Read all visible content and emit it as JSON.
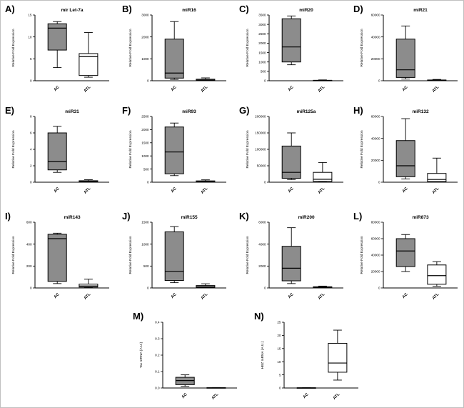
{
  "colors": {
    "ac_fill": "#8c8c8c",
    "atl_fill": "#ffffff",
    "stroke": "#000000",
    "background": "#ffffff"
  },
  "groups": [
    "AC",
    "ATL"
  ],
  "chart_data": [
    {
      "panel": "A)",
      "type": "box",
      "title": "mir Let-7a",
      "ylabel": "Relative Fold Expression",
      "ylim": [
        0,
        15
      ],
      "yticks": [
        0,
        5,
        10,
        15
      ],
      "ytick_labels": [
        "0",
        "5",
        "10",
        "15"
      ],
      "row": 1,
      "col": 1,
      "boxes": [
        {
          "group": "AC",
          "fill": "gray",
          "whisker_low": 3,
          "q1": 7,
          "median": 12,
          "q3": 13,
          "whisker_high": 13.5
        },
        {
          "group": "ATL",
          "fill": "white",
          "whisker_low": 0.8,
          "q1": 1.2,
          "median": 5.5,
          "q3": 6.2,
          "whisker_high": 11
        }
      ]
    },
    {
      "panel": "B)",
      "type": "box",
      "title": "miR16",
      "ylabel": "Relative Fold Expression",
      "ylim": [
        0,
        3000
      ],
      "yticks": [
        0,
        1000,
        2000,
        3000
      ],
      "ytick_labels": [
        "0",
        "1000",
        "2000",
        "3000"
      ],
      "row": 1,
      "col": 2,
      "boxes": [
        {
          "group": "AC",
          "fill": "gray",
          "whisker_low": 60,
          "q1": 120,
          "median": 350,
          "q3": 1900,
          "whisker_high": 2700
        },
        {
          "group": "ATL",
          "fill": "white",
          "whisker_low": 5,
          "q1": 15,
          "median": 35,
          "q3": 70,
          "whisker_high": 130
        }
      ]
    },
    {
      "panel": "C)",
      "type": "box",
      "title": "miR20",
      "ylabel": "Relative Fold Expression",
      "ylim": [
        0,
        3500
      ],
      "yticks": [
        0,
        500,
        1000,
        1500,
        2000,
        2500,
        3000,
        3500
      ],
      "ytick_labels": [
        "0",
        "500",
        "1000",
        "1500",
        "2000",
        "2500",
        "3000",
        "3500"
      ],
      "row": 1,
      "col": 3,
      "boxes": [
        {
          "group": "AC",
          "fill": "gray",
          "whisker_low": 850,
          "q1": 1000,
          "median": 1800,
          "q3": 3300,
          "whisker_high": 3450
        },
        {
          "group": "ATL",
          "fill": "white",
          "whisker_low": 3,
          "q1": 6,
          "median": 12,
          "q3": 25,
          "whisker_high": 45
        }
      ]
    },
    {
      "panel": "D)",
      "type": "box",
      "title": "miR21",
      "ylabel": "Relative Fold Expression",
      "ylim": [
        0,
        60000
      ],
      "yticks": [
        0,
        20000,
        40000,
        60000
      ],
      "ytick_labels": [
        "0",
        "20000",
        "40000",
        "60000"
      ],
      "row": 1,
      "col": 4,
      "boxes": [
        {
          "group": "AC",
          "fill": "gray",
          "whisker_low": 1500,
          "q1": 3000,
          "median": 10000,
          "q3": 38000,
          "whisker_high": 50000
        },
        {
          "group": "ATL",
          "fill": "white",
          "whisker_low": 100,
          "q1": 200,
          "median": 400,
          "q3": 700,
          "whisker_high": 1200
        }
      ]
    },
    {
      "panel": "E)",
      "type": "box",
      "title": "miR31",
      "ylabel": "Relative Fold Expression",
      "ylim": [
        0,
        8
      ],
      "yticks": [
        0,
        2,
        4,
        6,
        8
      ],
      "ytick_labels": [
        "0",
        "2",
        "4",
        "6",
        "8"
      ],
      "row": 2,
      "col": 1,
      "boxes": [
        {
          "group": "AC",
          "fill": "gray",
          "whisker_low": 1.2,
          "q1": 1.5,
          "median": 2.5,
          "q3": 6.0,
          "whisker_high": 6.8
        },
        {
          "group": "ATL",
          "fill": "white",
          "whisker_low": 0.03,
          "q1": 0.05,
          "median": 0.1,
          "q3": 0.18,
          "whisker_high": 0.3
        }
      ]
    },
    {
      "panel": "F)",
      "type": "box",
      "title": "miR93",
      "ylabel": "Relative Fold Expression",
      "ylim": [
        0,
        2500
      ],
      "yticks": [
        0,
        500,
        1000,
        1500,
        2000,
        2500
      ],
      "ytick_labels": [
        "0",
        "500",
        "1000",
        "1500",
        "2000",
        "2500"
      ],
      "row": 2,
      "col": 2,
      "boxes": [
        {
          "group": "AC",
          "fill": "gray",
          "whisker_low": 250,
          "q1": 320,
          "median": 1150,
          "q3": 2100,
          "whisker_high": 2250
        },
        {
          "group": "ATL",
          "fill": "white",
          "whisker_low": 5,
          "q1": 10,
          "median": 25,
          "q3": 50,
          "whisker_high": 90
        }
      ]
    },
    {
      "panel": "G)",
      "type": "box",
      "title": "miR125a",
      "ylabel": "Relative Fold Expression",
      "ylim": [
        0,
        200000
      ],
      "yticks": [
        0,
        50000,
        100000,
        150000,
        200000
      ],
      "ytick_labels": [
        "0",
        "50000",
        "100000",
        "150000",
        "200000"
      ],
      "row": 2,
      "col": 3,
      "boxes": [
        {
          "group": "AC",
          "fill": "gray",
          "whisker_low": 8000,
          "q1": 12000,
          "median": 30000,
          "q3": 110000,
          "whisker_high": 150000
        },
        {
          "group": "ATL",
          "fill": "white",
          "whisker_low": 1000,
          "q1": 2500,
          "median": 9000,
          "q3": 30000,
          "whisker_high": 60000
        }
      ]
    },
    {
      "panel": "H)",
      "type": "box",
      "title": "miR132",
      "ylabel": "Relative Fold Expression",
      "ylim": [
        0,
        60000
      ],
      "yticks": [
        0,
        20000,
        40000,
        60000
      ],
      "ytick_labels": [
        "0",
        "20000",
        "40000",
        "60000"
      ],
      "row": 2,
      "col": 4,
      "boxes": [
        {
          "group": "AC",
          "fill": "gray",
          "whisker_low": 3000,
          "q1": 5000,
          "median": 15000,
          "q3": 38000,
          "whisker_high": 58000
        },
        {
          "group": "ATL",
          "fill": "white",
          "whisker_low": 300,
          "q1": 600,
          "median": 2500,
          "q3": 8000,
          "whisker_high": 22000
        }
      ]
    },
    {
      "panel": "I)",
      "type": "box",
      "title": "miR143",
      "ylabel": "Relative Fold Expression",
      "ylim": [
        0,
        600
      ],
      "yticks": [
        0,
        200,
        400,
        600
      ],
      "ytick_labels": [
        "0",
        "200",
        "400",
        "600"
      ],
      "row": 3,
      "col": 1,
      "boxes": [
        {
          "group": "AC",
          "fill": "gray",
          "whisker_low": 40,
          "q1": 60,
          "median": 450,
          "q3": 490,
          "whisker_high": 500
        },
        {
          "group": "ATL",
          "fill": "white",
          "whisker_low": 3,
          "q1": 8,
          "median": 18,
          "q3": 35,
          "whisker_high": 80
        }
      ]
    },
    {
      "panel": "J)",
      "type": "box",
      "title": "miR155",
      "ylabel": "Relative Fold Expression",
      "ylim": [
        0,
        1500
      ],
      "yticks": [
        0,
        500,
        1000,
        1500
      ],
      "ytick_labels": [
        "0",
        "500",
        "1000",
        "1500"
      ],
      "row": 3,
      "col": 2,
      "boxes": [
        {
          "group": "AC",
          "fill": "gray",
          "whisker_low": 120,
          "q1": 170,
          "median": 380,
          "q3": 1280,
          "whisker_high": 1400
        },
        {
          "group": "ATL",
          "fill": "white",
          "whisker_low": 5,
          "q1": 12,
          "median": 28,
          "q3": 55,
          "whisker_high": 95
        }
      ]
    },
    {
      "panel": "K)",
      "type": "box",
      "title": "miR200",
      "ylabel": "Relative Fold Expression",
      "ylim": [
        0,
        6000
      ],
      "yticks": [
        0,
        2000,
        4000,
        6000
      ],
      "ytick_labels": [
        "0",
        "2000",
        "4000",
        "6000"
      ],
      "row": 3,
      "col": 3,
      "boxes": [
        {
          "group": "AC",
          "fill": "gray",
          "whisker_low": 400,
          "q1": 650,
          "median": 1800,
          "q3": 3800,
          "whisker_high": 5500
        },
        {
          "group": "ATL",
          "fill": "white",
          "whisker_low": 10,
          "q1": 25,
          "median": 60,
          "q3": 110,
          "whisker_high": 170
        }
      ]
    },
    {
      "panel": "L)",
      "type": "box",
      "title": "miR873",
      "ylabel": "Relative Fold Expression",
      "ylim": [
        0,
        80000
      ],
      "yticks": [
        0,
        20000,
        40000,
        60000,
        80000
      ],
      "ytick_labels": [
        "0",
        "20000",
        "40000",
        "60000",
        "80000"
      ],
      "row": 3,
      "col": 4,
      "boxes": [
        {
          "group": "AC",
          "fill": "gray",
          "whisker_low": 20000,
          "q1": 26000,
          "median": 45000,
          "q3": 60000,
          "whisker_high": 65000
        },
        {
          "group": "ATL",
          "fill": "white",
          "whisker_low": 2000,
          "q1": 4500,
          "median": 15000,
          "q3": 28000,
          "whisker_high": 32000
        }
      ]
    },
    {
      "panel": "M)",
      "type": "box",
      "title": "",
      "ylabel": "Tax mRNA (A.U.)",
      "ylim": [
        0,
        0.4
      ],
      "yticks": [
        0,
        0.1,
        0.2,
        0.3,
        0.4
      ],
      "ytick_labels": [
        "0.0",
        "0.1",
        "0.2",
        "0.3",
        "0.4"
      ],
      "row": 4,
      "col": 2,
      "boxes": [
        {
          "group": "AC",
          "fill": "gray",
          "whisker_low": 0.01,
          "q1": 0.02,
          "median": 0.045,
          "q3": 0.065,
          "whisker_high": 0.08
        },
        {
          "group": "ATL",
          "fill": "white",
          "whisker_low": 0,
          "q1": 0,
          "median": 0.001,
          "q3": 0.002,
          "whisker_high": 0.003
        }
      ]
    },
    {
      "panel": "N)",
      "type": "box",
      "title": "",
      "ylabel": "HBZ mRNA (A.U.)",
      "ylim": [
        0,
        25
      ],
      "yticks": [
        0,
        5,
        10,
        15,
        20,
        25
      ],
      "ytick_labels": [
        "0",
        "5",
        "10",
        "15",
        "20",
        "25"
      ],
      "row": 4,
      "col": 3,
      "boxes": [
        {
          "group": "AC",
          "fill": "gray",
          "whisker_low": 0,
          "q1": 0,
          "median": 0.05,
          "q3": 0.1,
          "whisker_high": 0.15
        },
        {
          "group": "ATL",
          "fill": "white",
          "whisker_low": 3,
          "q1": 6,
          "median": 9.5,
          "q3": 17,
          "whisker_high": 22
        }
      ]
    }
  ]
}
